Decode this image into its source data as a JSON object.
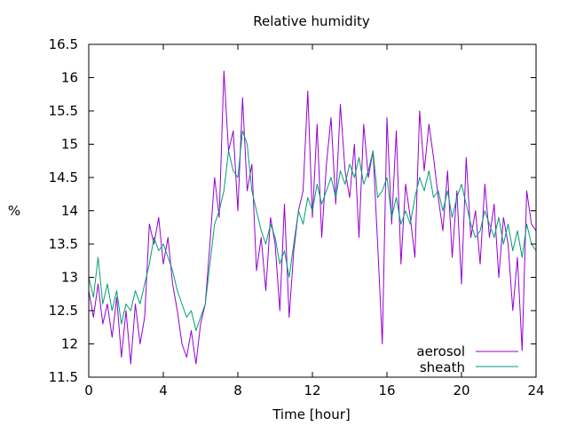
{
  "chart_data": {
    "type": "line",
    "title": "Relative humidity",
    "xlabel": "Time [hour]",
    "ylabel": "%",
    "xlim": [
      0,
      24
    ],
    "ylim": [
      11.5,
      16.5
    ],
    "xticks": [
      0,
      4,
      8,
      12,
      16,
      20,
      24
    ],
    "xtick_labels": [
      "0",
      "4",
      "8",
      "12",
      "16",
      "20",
      "24"
    ],
    "yticks": [
      11.5,
      12,
      12.5,
      13,
      13.5,
      14,
      14.5,
      15,
      15.5,
      16,
      16.5
    ],
    "ytick_labels": [
      "11.5",
      "12",
      "12.5",
      "13",
      "13.5",
      "14",
      "14.5",
      "15",
      "15.5",
      "16",
      "16.5"
    ],
    "grid": false,
    "legend_position": "bottom-right",
    "series": [
      {
        "name": "aerosol",
        "color": "#9400d3",
        "x": [
          0,
          0.25,
          0.5,
          0.75,
          1,
          1.25,
          1.5,
          1.75,
          2,
          2.25,
          2.5,
          2.75,
          3,
          3.25,
          3.5,
          3.75,
          4,
          4.25,
          4.5,
          4.75,
          5,
          5.25,
          5.5,
          5.75,
          6,
          6.25,
          6.5,
          6.75,
          7,
          7.25,
          7.5,
          7.75,
          8,
          8.25,
          8.5,
          8.75,
          9,
          9.25,
          9.5,
          9.75,
          10,
          10.25,
          10.5,
          10.75,
          11,
          11.25,
          11.5,
          11.75,
          12,
          12.25,
          12.5,
          12.75,
          13,
          13.25,
          13.5,
          13.75,
          14,
          14.25,
          14.5,
          14.75,
          15,
          15.25,
          15.5,
          15.75,
          16,
          16.25,
          16.5,
          16.75,
          17,
          17.25,
          17.5,
          17.75,
          18,
          18.25,
          18.5,
          18.75,
          19,
          19.25,
          19.5,
          19.75,
          20,
          20.25,
          20.5,
          20.75,
          21,
          21.25,
          21.5,
          21.75,
          22,
          22.25,
          22.5,
          22.75,
          23,
          23.25,
          23.5,
          23.75,
          24
        ],
        "y": [
          12.8,
          12.4,
          12.9,
          12.3,
          12.6,
          12.1,
          12.7,
          11.8,
          12.5,
          11.7,
          12.6,
          12.0,
          12.4,
          13.8,
          13.5,
          13.9,
          13.2,
          13.6,
          12.9,
          12.5,
          12.0,
          11.8,
          12.2,
          11.7,
          12.3,
          12.6,
          13.5,
          14.5,
          13.9,
          16.1,
          14.9,
          15.2,
          14.0,
          15.7,
          14.3,
          14.7,
          13.1,
          13.6,
          12.8,
          13.9,
          13.5,
          12.5,
          14.1,
          12.4,
          13.4,
          14.0,
          14.3,
          15.8,
          13.9,
          15.3,
          13.6,
          14.7,
          15.4,
          14.1,
          15.6,
          14.6,
          14.2,
          15.0,
          13.6,
          15.3,
          14.5,
          14.9,
          13.5,
          12.0,
          15.4,
          13.8,
          15.2,
          13.2,
          14.4,
          13.9,
          13.3,
          15.5,
          14.6,
          15.3,
          14.8,
          14.2,
          13.7,
          14.6,
          13.3,
          14.3,
          12.9,
          14.8,
          13.6,
          14.0,
          13.2,
          14.4,
          13.6,
          14.1,
          13.0,
          13.9,
          13.5,
          12.5,
          13.3,
          11.9,
          14.3,
          13.8,
          13.7
        ],
        "note": ""
      },
      {
        "name": "sheath",
        "color": "#009e73",
        "x": [
          0,
          0.25,
          0.5,
          0.75,
          1,
          1.25,
          1.5,
          1.75,
          2,
          2.25,
          2.5,
          2.75,
          3,
          3.25,
          3.5,
          3.75,
          4,
          4.25,
          4.5,
          4.75,
          5,
          5.25,
          5.5,
          5.75,
          6,
          6.25,
          6.5,
          6.75,
          7,
          7.25,
          7.5,
          7.75,
          8,
          8.25,
          8.5,
          8.75,
          9,
          9.25,
          9.5,
          9.75,
          10,
          10.25,
          10.5,
          10.75,
          11,
          11.25,
          11.5,
          11.75,
          12,
          12.25,
          12.5,
          12.75,
          13,
          13.25,
          13.5,
          13.75,
          14,
          14.25,
          14.5,
          14.75,
          15,
          15.25,
          15.5,
          15.75,
          16,
          16.25,
          16.5,
          16.75,
          17,
          17.25,
          17.5,
          17.75,
          18,
          18.25,
          18.5,
          18.75,
          19,
          19.25,
          19.5,
          19.75,
          20,
          20.25,
          20.5,
          20.75,
          21,
          21.25,
          21.5,
          21.75,
          22,
          22.25,
          22.5,
          22.75,
          23,
          23.25,
          23.5,
          23.75,
          24
        ],
        "y": [
          13.0,
          12.7,
          13.3,
          12.6,
          12.9,
          12.5,
          12.8,
          12.3,
          12.6,
          12.5,
          12.8,
          12.6,
          12.9,
          13.2,
          13.6,
          13.4,
          13.5,
          13.3,
          13.1,
          12.8,
          12.6,
          12.4,
          12.5,
          12.2,
          12.4,
          12.6,
          13.2,
          13.8,
          14.0,
          14.3,
          14.9,
          14.6,
          14.5,
          15.2,
          15.0,
          14.3,
          14.0,
          13.7,
          13.5,
          13.8,
          13.6,
          13.2,
          13.4,
          13.0,
          13.5,
          14.0,
          13.8,
          14.2,
          14.0,
          14.4,
          14.1,
          14.3,
          14.5,
          14.2,
          14.6,
          14.4,
          14.7,
          14.5,
          14.8,
          14.4,
          14.6,
          14.9,
          14.2,
          14.3,
          14.5,
          13.9,
          14.2,
          13.8,
          14.0,
          13.8,
          14.2,
          14.5,
          14.3,
          14.6,
          14.2,
          14.3,
          14.0,
          14.3,
          13.9,
          14.2,
          14.4,
          14.1,
          13.8,
          13.6,
          13.7,
          14.0,
          13.8,
          13.6,
          13.9,
          13.5,
          13.8,
          13.4,
          13.7,
          13.3,
          13.8,
          13.5,
          13.4
        ],
        "note": ""
      }
    ]
  }
}
